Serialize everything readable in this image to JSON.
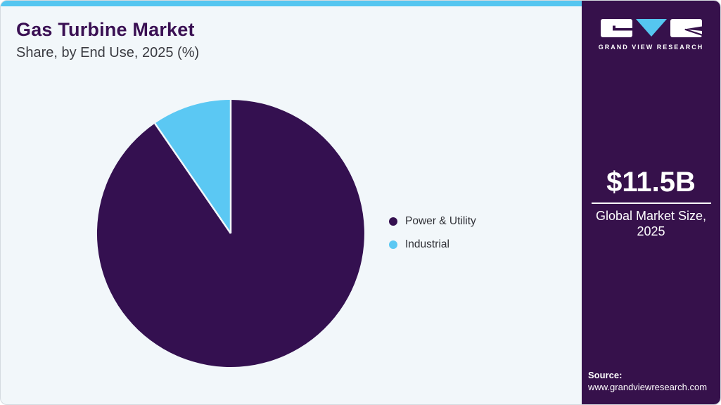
{
  "header": {
    "title": "Gas Turbine Market",
    "subtitle": "Share, by End Use, 2025 (%)"
  },
  "chart_data": {
    "type": "pie",
    "title": "Gas Turbine Market Share, by End Use, 2025 (%)",
    "labels": [
      "Power & Utility",
      "Industrial"
    ],
    "values": [
      90.4,
      9.6
    ],
    "colors": [
      "#341050",
      "#5BC8F3"
    ],
    "start_angle_deg": 0,
    "direction": "clockwise",
    "legend_position": "right",
    "data_labels_shown": false
  },
  "sidebar": {
    "logo": {
      "text": "GRAND VIEW RESEARCH"
    },
    "stat": {
      "value": "$11.5B",
      "caption_line1": "Global Market Size,",
      "caption_line2": "2025"
    },
    "source": {
      "label": "Source:",
      "url": "www.grandviewresearch.com"
    }
  },
  "colors": {
    "topbar_accent": "#55C6F0",
    "card_background": "#F2F7FA",
    "sidebar_background": "#36114B",
    "title_text": "#3A1053",
    "body_text": "#3A3B41",
    "logo_triangle_blue": "#55C6F0"
  }
}
